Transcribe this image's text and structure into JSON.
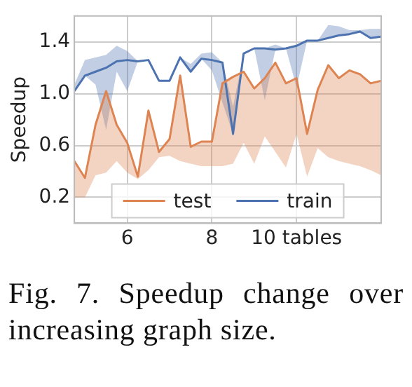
{
  "chart_data": {
    "type": "line",
    "ylabel": "Speedup",
    "x": [
      4.75,
      5,
      5.25,
      5.5,
      5.75,
      6,
      6.25,
      6.5,
      6.75,
      7,
      7.25,
      7.5,
      7.75,
      8,
      8.25,
      8.5,
      8.75,
      9,
      9.25,
      9.5,
      9.75,
      10,
      10.25,
      10.5,
      10.75,
      11,
      11.25,
      11.5,
      11.75,
      12
    ],
    "series": [
      {
        "name": "test",
        "color": "#dd8452",
        "values": [
          0.48,
          0.35,
          0.76,
          1.02,
          0.76,
          0.62,
          0.36,
          0.87,
          0.55,
          0.65,
          1.14,
          0.59,
          0.63,
          0.63,
          1.08,
          1.13,
          1.17,
          1.04,
          1.12,
          1.24,
          1.08,
          1.12,
          0.69,
          1.03,
          1.22,
          1.12,
          1.18,
          1.15,
          1.08,
          1.1
        ],
        "lower": [
          0.2,
          0.2,
          0.37,
          0.39,
          0.48,
          0.39,
          0.34,
          0.41,
          0.51,
          0.52,
          0.48,
          0.46,
          0.44,
          0.44,
          0.44,
          0.46,
          0.62,
          0.46,
          0.67,
          0.55,
          0.43,
          0.69,
          0.36,
          0.58,
          0.51,
          0.48,
          0.46,
          0.44,
          0.41,
          0.37
        ],
        "upper": [
          0.48,
          0.35,
          0.76,
          1.02,
          0.76,
          0.62,
          0.36,
          0.87,
          0.55,
          0.65,
          1.14,
          0.59,
          0.63,
          0.63,
          1.08,
          1.13,
          1.17,
          1.04,
          1.12,
          1.24,
          1.08,
          1.12,
          0.69,
          1.03,
          1.22,
          1.12,
          1.18,
          1.15,
          1.08,
          1.1
        ]
      },
      {
        "name": "train",
        "color": "#4c72b0",
        "values": [
          1.02,
          1.14,
          1.17,
          1.2,
          1.25,
          1.26,
          1.25,
          1.26,
          1.1,
          1.1,
          1.28,
          1.17,
          1.27,
          1.26,
          1.24,
          0.69,
          1.31,
          1.35,
          1.35,
          1.34,
          1.35,
          1.37,
          1.41,
          1.41,
          1.43,
          1.45,
          1.46,
          1.48,
          1.43,
          1.44
        ],
        "lower": [
          1.02,
          1.14,
          1.07,
          0.72,
          1.17,
          1.02,
          1.25,
          1.26,
          1.1,
          1.1,
          1.28,
          1.17,
          1.27,
          1.18,
          0.93,
          0.69,
          1.31,
          1.35,
          0.95,
          1.34,
          1.35,
          1.05,
          1.41,
          1.41,
          1.43,
          1.45,
          1.46,
          1.48,
          1.43,
          1.44
        ],
        "upper": [
          1.07,
          1.26,
          1.28,
          1.3,
          1.37,
          1.33,
          1.25,
          1.26,
          1.1,
          1.1,
          1.28,
          1.23,
          1.31,
          1.32,
          1.24,
          0.9,
          1.31,
          1.35,
          1.35,
          1.38,
          1.35,
          1.37,
          1.41,
          1.41,
          1.53,
          1.52,
          1.49,
          1.49,
          1.5,
          1.5
        ]
      }
    ],
    "xlim": [
      4.75,
      12
    ],
    "xticks": [
      6,
      8,
      {
        "value": 10,
        "label": "10 tables"
      }
    ],
    "ylim": [
      0,
      1.6
    ],
    "yticks": [
      {
        "value": 0.2,
        "label": "0.2"
      },
      {
        "value": 0.6,
        "label": "0.6"
      },
      {
        "value": 1.0,
        "label": "1.0"
      },
      {
        "value": 1.4,
        "label": "1.4"
      }
    ],
    "grid": true,
    "legend": "bottom",
    "marker": "none",
    "line_style": "solid",
    "annotations": [
      "Fig. 7. Speedup change over increasing graph size."
    ]
  }
}
